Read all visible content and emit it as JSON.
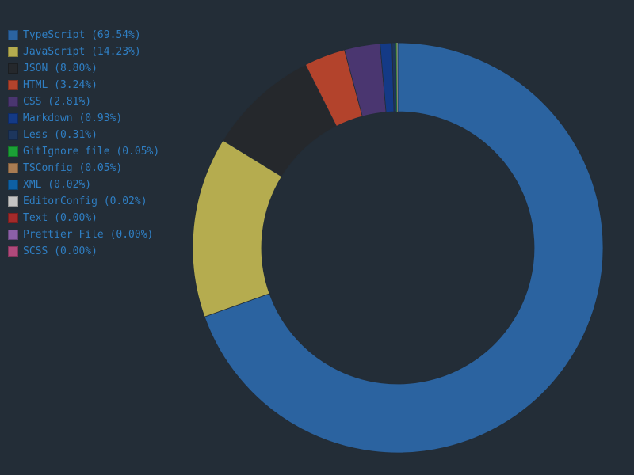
{
  "colors": {
    "background": "#232d37",
    "legend_text": "#2f7fc4"
  },
  "chart_data": {
    "type": "pie",
    "style": "donut",
    "legend_position": "top-left",
    "start": "top",
    "direction": "clockwise",
    "slices": [
      {
        "label": "TypeScript (69.54%)",
        "value": 69.54,
        "color": "#2b63a0"
      },
      {
        "label": "JavaScript (14.23%)",
        "value": 14.23,
        "color": "#b5ac4f"
      },
      {
        "label": "JSON (8.80%)",
        "value": 8.8,
        "color": "#25282c"
      },
      {
        "label": "HTML (3.24%)",
        "value": 3.24,
        "color": "#b3432c"
      },
      {
        "label": "CSS (2.81%)",
        "value": 2.81,
        "color": "#4a3670"
      },
      {
        "label": "Markdown (0.93%)",
        "value": 0.93,
        "color": "#143a86"
      },
      {
        "label": "Less (0.31%)",
        "value": 0.31,
        "color": "#1d365d"
      },
      {
        "label": "GitIgnore file (0.05%)",
        "value": 0.05,
        "color": "#1ba036"
      },
      {
        "label": "TSConfig (0.05%)",
        "value": 0.05,
        "color": "#a97c53"
      },
      {
        "label": "XML (0.02%)",
        "value": 0.02,
        "color": "#0e60a4"
      },
      {
        "label": "EditorConfig (0.02%)",
        "value": 0.02,
        "color": "#c4c4c4"
      },
      {
        "label": "Text (0.00%)",
        "value": 0.0,
        "color": "#a32a2a"
      },
      {
        "label": "Prettier File (0.00%)",
        "value": 0.0,
        "color": "#8b60a8"
      },
      {
        "label": "SCSS (0.00%)",
        "value": 0.0,
        "color": "#b0497b"
      }
    ]
  }
}
